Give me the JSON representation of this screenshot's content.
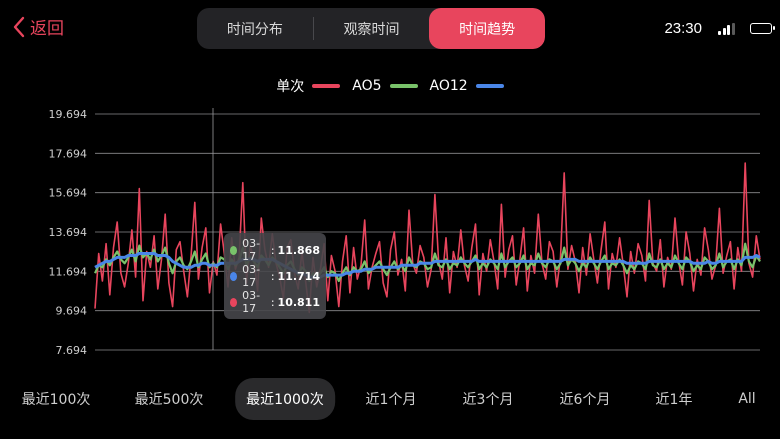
{
  "header": {
    "back_label": "返回",
    "tabs": [
      {
        "label": "时间分布",
        "active": false
      },
      {
        "label": "观察时间",
        "active": false
      },
      {
        "label": "时间趋势",
        "active": true
      }
    ]
  },
  "status_bar": {
    "time": "23:30"
  },
  "colors": {
    "accent": "#e8455d",
    "single": "#e8455d",
    "ao5": "#79c26a",
    "ao12": "#4a86e8"
  },
  "chart_data": {
    "type": "line",
    "legend_position": "top-center",
    "grid": true,
    "ylim": [
      7.694,
      19.694
    ],
    "y_ticks": [
      "19.694",
      "17.694",
      "15.694",
      "13.694",
      "11.694",
      "9.694",
      "7.694"
    ],
    "series": [
      {
        "name": "单次",
        "color": "#e8455d",
        "values": [
          9.8,
          12.6,
          11.2,
          13.1,
          10.5,
          12.9,
          14.2,
          11.6,
          10.9,
          12.1,
          13.8,
          11.4,
          15.9,
          10.2,
          12.7,
          11.9,
          13.5,
          10.8,
          12.3,
          14.6,
          11.1,
          9.9,
          12.8,
          13.2,
          11.7,
          10.4,
          12.5,
          15.2,
          11.3,
          12.9,
          13.9,
          10.6,
          12.2,
          11.5,
          14.1,
          12.6,
          10.9,
          13.4,
          11.8,
          12.4,
          16.2,
          11.1,
          13.0,
          12.3,
          10.7,
          14.4,
          12.8,
          11.9,
          13.6,
          12.1,
          11.4,
          10.3,
          12.9,
          13.3,
          11.6,
          10.8,
          12.7,
          11.2,
          9.6,
          12.4,
          10.9,
          11.8,
          13.1,
          10.2,
          12.5,
          11.7,
          9.9,
          12.2,
          13.5,
          10.6,
          12.9,
          11.3,
          12.0,
          14.3,
          10.8,
          11.9,
          12.6,
          13.2,
          11.1,
          10.4,
          12.8,
          13.7,
          11.5,
          12.3,
          10.7,
          14.8,
          12.1,
          11.6,
          13.0,
          12.4,
          10.9,
          11.8,
          15.6,
          12.2,
          11.3,
          13.4,
          10.6,
          12.7,
          11.9,
          13.8,
          12.0,
          11.2,
          12.9,
          14.1,
          10.5,
          12.6,
          11.7,
          13.3,
          12.2,
          10.8,
          15.1,
          11.4,
          12.8,
          13.5,
          11.0,
          12.3,
          13.9,
          10.7,
          12.5,
          11.6,
          14.6,
          12.1,
          11.3,
          13.2,
          12.7,
          10.9,
          12.4,
          16.7,
          11.8,
          13.0,
          12.2,
          10.6,
          12.9,
          11.5,
          13.6,
          12.3,
          11.1,
          12.8,
          14.2,
          10.8,
          12.6,
          11.9,
          13.4,
          12.0,
          10.4,
          12.7,
          11.6,
          13.1,
          12.5,
          11.2,
          15.3,
          12.1,
          11.7,
          13.3,
          10.9,
          12.4,
          11.8,
          14.4,
          12.2,
          11.0,
          13.7,
          12.6,
          10.7,
          12.3,
          11.5,
          13.9,
          12.8,
          11.3,
          12.0,
          14.9,
          11.6,
          12.5,
          13.2,
          10.8,
          12.9,
          11.7,
          17.2,
          12.1,
          11.4,
          13.5,
          12.3
        ]
      },
      {
        "name": "AO5",
        "color": "#79c26a",
        "values": [
          11.6,
          12.0,
          11.9,
          12.3,
          12.0,
          12.4,
          12.7,
          12.3,
          12.1,
          12.4,
          12.8,
          12.2,
          13.0,
          12.4,
          12.6,
          12.3,
          12.8,
          12.2,
          12.5,
          12.9,
          12.1,
          11.6,
          12.2,
          12.4,
          12.0,
          11.8,
          12.2,
          12.7,
          11.9,
          12.3,
          12.6,
          11.9,
          12.1,
          11.9,
          12.4,
          12.3,
          11.8,
          12.3,
          12.0,
          12.2,
          12.9,
          12.0,
          12.4,
          12.2,
          11.9,
          12.5,
          12.3,
          12.0,
          12.4,
          12.2,
          11.9,
          11.6,
          12.0,
          12.2,
          11.8,
          11.5,
          11.9,
          11.7,
          11.2,
          11.6,
          11.4,
          11.6,
          11.9,
          11.4,
          11.7,
          11.6,
          11.2,
          11.6,
          11.9,
          11.5,
          11.9,
          11.7,
          11.8,
          12.2,
          11.6,
          11.8,
          12.0,
          12.2,
          11.8,
          11.5,
          11.9,
          12.2,
          11.8,
          12.0,
          11.7,
          12.4,
          12.0,
          11.9,
          12.2,
          12.1,
          11.8,
          11.9,
          12.6,
          12.0,
          11.9,
          12.3,
          11.8,
          12.1,
          12.0,
          12.4,
          12.1,
          11.9,
          12.2,
          12.5,
          11.8,
          12.1,
          11.9,
          12.3,
          12.1,
          11.8,
          12.6,
          11.9,
          12.2,
          12.4,
          11.9,
          12.1,
          12.5,
          11.8,
          12.1,
          12.0,
          12.6,
          12.1,
          11.9,
          12.3,
          12.2,
          11.8,
          12.1,
          12.9,
          12.0,
          12.3,
          12.1,
          11.7,
          12.1,
          11.9,
          12.4,
          12.1,
          11.8,
          12.2,
          12.5,
          11.8,
          12.1,
          12.0,
          12.3,
          12.0,
          11.6,
          12.0,
          11.8,
          12.2,
          12.1,
          11.8,
          12.6,
          12.0,
          11.9,
          12.3,
          11.8,
          12.1,
          11.9,
          12.5,
          12.1,
          11.8,
          12.4,
          12.2,
          11.7,
          12.0,
          11.8,
          12.4,
          12.2,
          11.8,
          12.0,
          12.6,
          11.9,
          12.2,
          12.3,
          11.8,
          12.3,
          12.0,
          13.1,
          12.2,
          11.9,
          12.5,
          12.2
        ]
      },
      {
        "name": "AO12",
        "color": "#4a86e8",
        "values": [
          11.9,
          12.0,
          12.1,
          12.2,
          12.2,
          12.3,
          12.4,
          12.4,
          12.4,
          12.5,
          12.5,
          12.5,
          12.6,
          12.6,
          12.6,
          12.6,
          12.6,
          12.5,
          12.5,
          12.5,
          12.4,
          12.2,
          12.1,
          12.0,
          11.9,
          11.9,
          11.9,
          12.0,
          12.0,
          12.1,
          12.1,
          12.0,
          12.0,
          12.0,
          12.1,
          12.1,
          12.1,
          12.1,
          12.1,
          12.2,
          12.3,
          12.3,
          12.3,
          12.3,
          12.2,
          12.3,
          12.3,
          12.3,
          12.3,
          12.2,
          12.1,
          12.0,
          11.9,
          11.8,
          11.7,
          11.6,
          11.6,
          11.5,
          11.4,
          11.4,
          11.4,
          11.4,
          11.5,
          11.5,
          11.5,
          11.5,
          11.5,
          11.5,
          11.6,
          11.6,
          11.7,
          11.7,
          11.7,
          11.8,
          11.8,
          11.8,
          11.9,
          11.9,
          11.9,
          11.9,
          11.9,
          11.9,
          11.9,
          12.0,
          12.0,
          12.0,
          12.0,
          12.0,
          12.1,
          12.1,
          12.1,
          12.1,
          12.2,
          12.2,
          12.2,
          12.2,
          12.2,
          12.2,
          12.2,
          12.2,
          12.2,
          12.2,
          12.2,
          12.3,
          12.2,
          12.2,
          12.2,
          12.2,
          12.2,
          12.2,
          12.2,
          12.2,
          12.2,
          12.2,
          12.2,
          12.2,
          12.2,
          12.2,
          12.2,
          12.2,
          12.2,
          12.2,
          12.2,
          12.2,
          12.2,
          12.2,
          12.2,
          12.3,
          12.3,
          12.3,
          12.3,
          12.2,
          12.2,
          12.2,
          12.2,
          12.2,
          12.2,
          12.2,
          12.2,
          12.2,
          12.2,
          12.2,
          12.2,
          12.2,
          12.1,
          12.1,
          12.1,
          12.1,
          12.1,
          12.1,
          12.2,
          12.2,
          12.2,
          12.2,
          12.2,
          12.2,
          12.2,
          12.2,
          12.2,
          12.2,
          12.2,
          12.2,
          12.1,
          12.1,
          12.1,
          12.1,
          12.2,
          12.1,
          12.1,
          12.2,
          12.2,
          12.2,
          12.2,
          12.2,
          12.2,
          12.2,
          12.4,
          12.4,
          12.4,
          12.5,
          12.4
        ]
      }
    ],
    "tooltip": {
      "rows": [
        {
          "date": "03-17",
          "value": "11.868",
          "color": "#79c26a"
        },
        {
          "date": "03-17",
          "value": "11.714",
          "color": "#4a86e8"
        },
        {
          "date": "03-17",
          "value": "10.811",
          "color": "#e8455d"
        }
      ]
    }
  },
  "ranges": [
    {
      "label": "最近100次",
      "active": false
    },
    {
      "label": "最近500次",
      "active": false
    },
    {
      "label": "最近1000次",
      "active": true
    },
    {
      "label": "近1个月",
      "active": false
    },
    {
      "label": "近3个月",
      "active": false
    },
    {
      "label": "近6个月",
      "active": false
    },
    {
      "label": "近1年",
      "active": false
    },
    {
      "label": "All",
      "active": false
    }
  ]
}
